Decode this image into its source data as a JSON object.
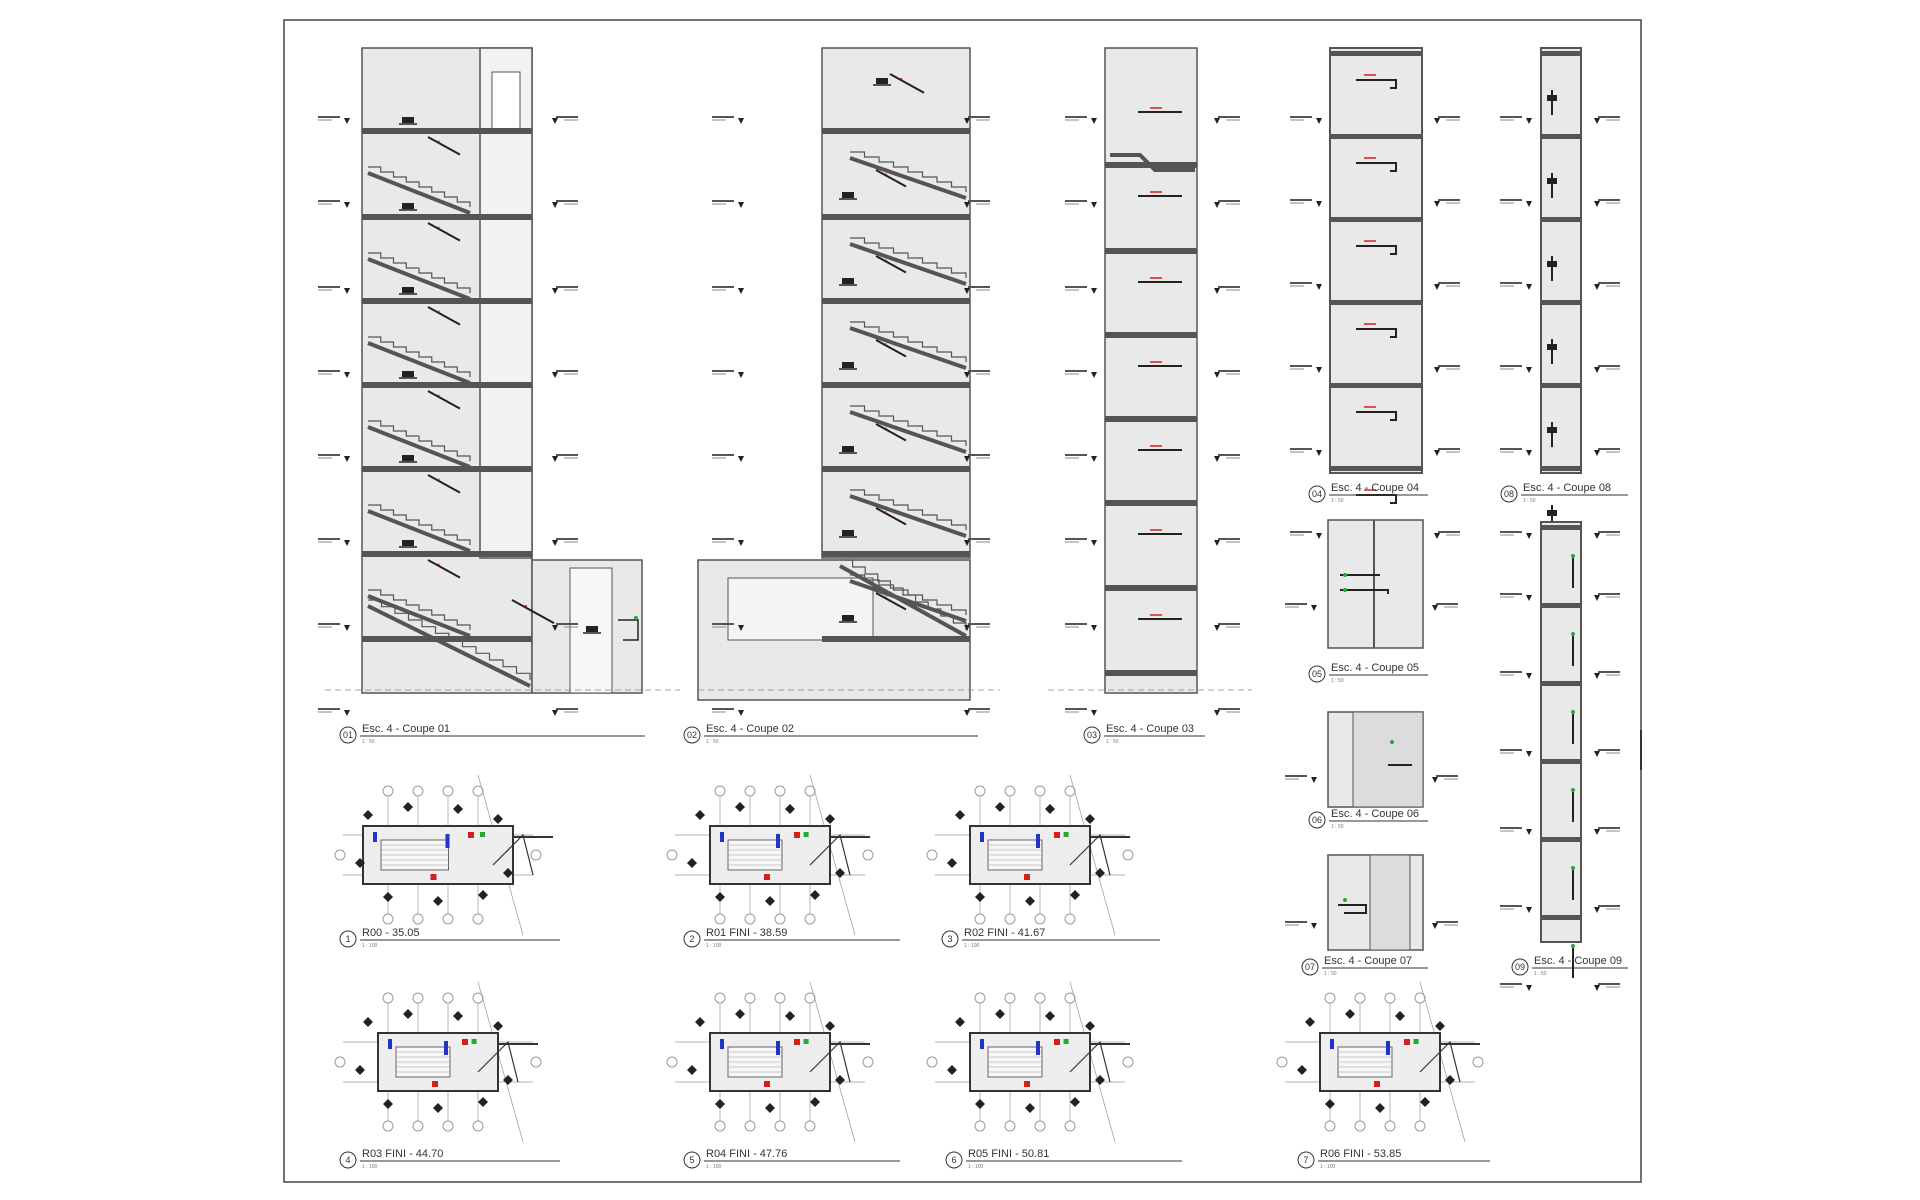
{
  "sections": [
    {
      "num": "01",
      "label": "Esc. 4 - Coupe 01",
      "scale": "1 : 50"
    },
    {
      "num": "02",
      "label": "Esc. 4 - Coupe 02",
      "scale": "1 : 50"
    },
    {
      "num": "03",
      "label": "Esc. 4 - Coupe 03",
      "scale": "1 : 50"
    },
    {
      "num": "04",
      "label": "Esc. 4 - Coupe 04",
      "scale": "1 : 50"
    },
    {
      "num": "05",
      "label": "Esc. 4 - Coupe 05",
      "scale": "1 : 50"
    },
    {
      "num": "06",
      "label": "Esc. 4 - Coupe 06",
      "scale": "1 : 50"
    },
    {
      "num": "07",
      "label": "Esc. 4 - Coupe 07",
      "scale": "1 : 50"
    },
    {
      "num": "08",
      "label": "Esc. 4 - Coupe 08",
      "scale": "1 : 50"
    },
    {
      "num": "09",
      "label": "Esc. 4 - Coupe 09",
      "scale": "1 : 50"
    }
  ],
  "plans": [
    {
      "num": "1",
      "label": "R00 - 35.05",
      "scale": "1 : 100"
    },
    {
      "num": "2",
      "label": "R01 FINI - 38.59",
      "scale": "1 : 100"
    },
    {
      "num": "3",
      "label": "R02 FINI - 41.67",
      "scale": "1 : 100"
    },
    {
      "num": "4",
      "label": "R03 FINI - 44.70",
      "scale": "1 : 100"
    },
    {
      "num": "5",
      "label": "R04 FINI - 47.76",
      "scale": "1 : 100"
    },
    {
      "num": "6",
      "label": "R05 FINI - 50.81",
      "scale": "1 : 100"
    },
    {
      "num": "7",
      "label": "R06 FINI - 53.85",
      "scale": "1 : 100"
    }
  ],
  "colors": {
    "wall": "#555555",
    "fill": "#e9e9e9",
    "ink": "#333333",
    "grid": "#999999",
    "red": "#d32020",
    "blue": "#2233cc",
    "green": "#22aa33"
  }
}
